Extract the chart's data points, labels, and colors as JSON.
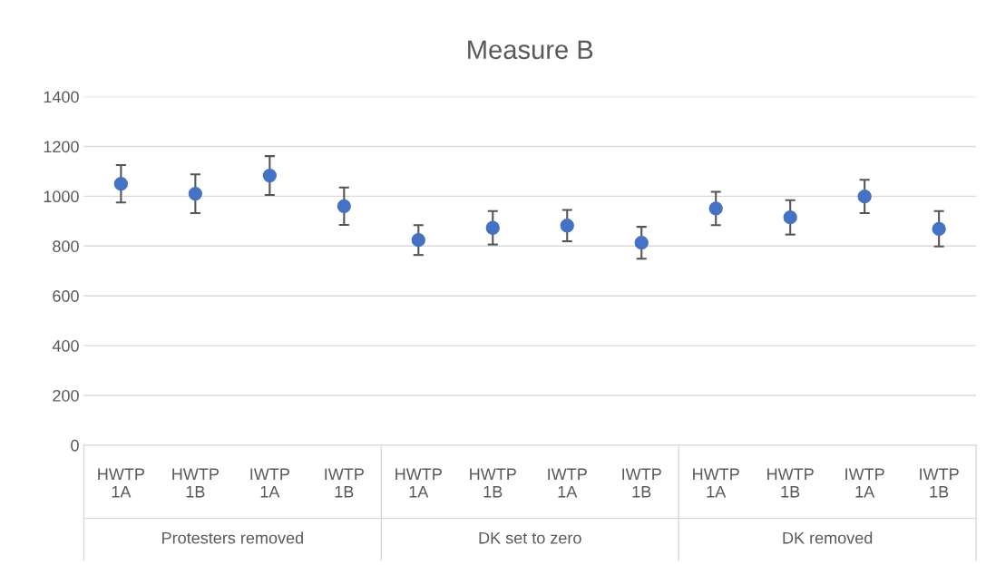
{
  "chart_data": {
    "type": "scatter",
    "title": "Measure B",
    "categories": [
      "HWTP\n1A",
      "HWTP\n1B",
      "IWTP\n1A",
      "IWTP\n1B",
      "HWTP\n1A",
      "HWTP\n1B",
      "IWTP\n1A",
      "IWTP\n1B",
      "HWTP\n1A",
      "HWTP\n1B",
      "IWTP\n1A",
      "IWTP\n1B"
    ],
    "series": [
      {
        "color": "#4472c4",
        "values": [
          1050,
          1010,
          1083,
          960,
          824,
          873,
          882,
          813,
          951,
          915,
          999,
          869
        ],
        "errors": [
          75,
          78,
          78,
          75,
          60,
          67,
          63,
          64,
          67,
          69,
          67,
          71
        ]
      }
    ],
    "ylim": [
      0,
      1400
    ],
    "yticks": [
      0,
      200,
      400,
      600,
      800,
      1000,
      1200,
      1400
    ],
    "grid": "y",
    "marker": "circle",
    "legend": false,
    "annotations": [
      "Protesters removed",
      "DK set to zero",
      "DK removed"
    ]
  }
}
